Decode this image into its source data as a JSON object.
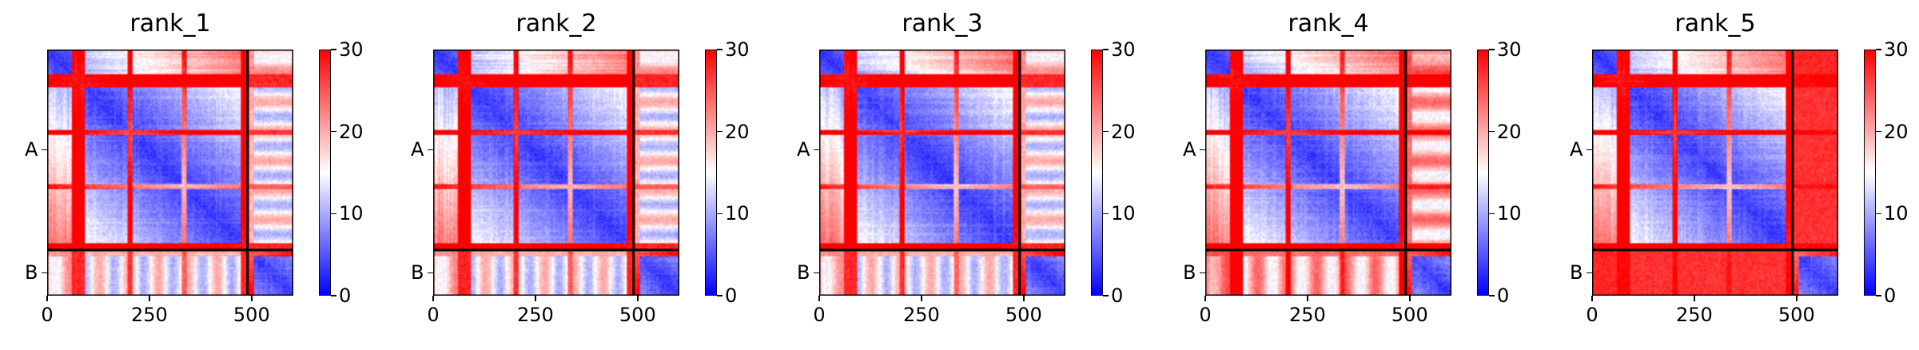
{
  "chart_data": [
    {
      "type": "heatmap",
      "title": "rank_1",
      "chains": [
        "A",
        "B"
      ],
      "chain_boundary": 490,
      "length": 602,
      "xticks": [
        "0",
        "250",
        "500"
      ],
      "xtick_values": [
        0,
        250,
        500
      ],
      "colorbar": {
        "min": 0,
        "max": 30,
        "ticks": [
          "0",
          "10",
          "20",
          "30"
        ],
        "tick_values": [
          0,
          10,
          20,
          30
        ],
        "colors": [
          "#0000ff",
          "#ffffff",
          "#ff0000"
        ]
      },
      "inter_chain": "strong-stripes"
    },
    {
      "type": "heatmap",
      "title": "rank_2",
      "chains": [
        "A",
        "B"
      ],
      "chain_boundary": 490,
      "length": 602,
      "xticks": [
        "0",
        "250",
        "500"
      ],
      "xtick_values": [
        0,
        250,
        500
      ],
      "colorbar": {
        "min": 0,
        "max": 30,
        "ticks": [
          "0",
          "10",
          "20",
          "30"
        ],
        "tick_values": [
          0,
          10,
          20,
          30
        ],
        "colors": [
          "#0000ff",
          "#ffffff",
          "#ff0000"
        ]
      },
      "inter_chain": "strong-stripes"
    },
    {
      "type": "heatmap",
      "title": "rank_3",
      "chains": [
        "A",
        "B"
      ],
      "chain_boundary": 490,
      "length": 602,
      "xticks": [
        "0",
        "250",
        "500"
      ],
      "xtick_values": [
        0,
        250,
        500
      ],
      "colorbar": {
        "min": 0,
        "max": 30,
        "ticks": [
          "0",
          "10",
          "20",
          "30"
        ],
        "tick_values": [
          0,
          10,
          20,
          30
        ],
        "colors": [
          "#0000ff",
          "#ffffff",
          "#ff0000"
        ]
      },
      "inter_chain": "strong-stripes"
    },
    {
      "type": "heatmap",
      "title": "rank_4",
      "chains": [
        "A",
        "B"
      ],
      "chain_boundary": 490,
      "length": 602,
      "xticks": [
        "0",
        "250",
        "500"
      ],
      "xtick_values": [
        0,
        250,
        500
      ],
      "colorbar": {
        "min": 0,
        "max": 30,
        "ticks": [
          "0",
          "10",
          "20",
          "30"
        ],
        "tick_values": [
          0,
          10,
          20,
          30
        ],
        "colors": [
          "#0000ff",
          "#ffffff",
          "#ff0000"
        ]
      },
      "inter_chain": "weak-stripes"
    },
    {
      "type": "heatmap",
      "title": "rank_5",
      "chains": [
        "A",
        "B"
      ],
      "chain_boundary": 490,
      "length": 602,
      "xticks": [
        "0",
        "250",
        "500"
      ],
      "xtick_values": [
        0,
        250,
        500
      ],
      "colorbar": {
        "min": 0,
        "max": 30,
        "ticks": [
          "0",
          "10",
          "20",
          "30"
        ],
        "tick_values": [
          0,
          10,
          20,
          30
        ],
        "colors": [
          "#0000ff",
          "#ffffff",
          "#ff0000"
        ]
      },
      "inter_chain": "mostly-red"
    }
  ]
}
